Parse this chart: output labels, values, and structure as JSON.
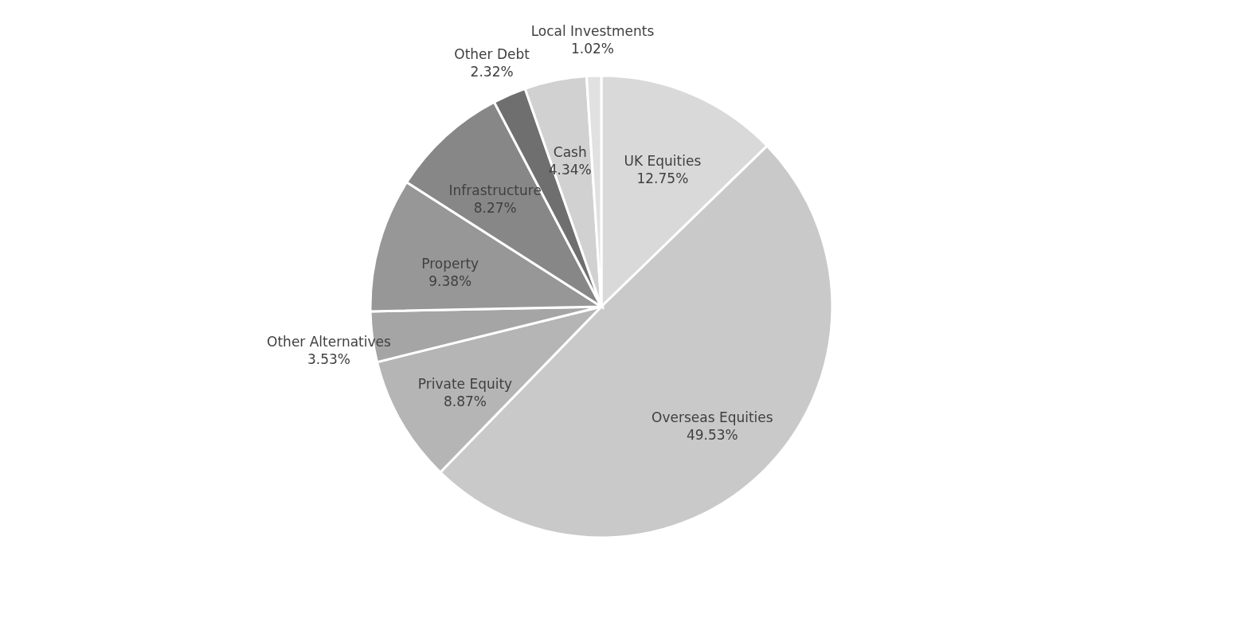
{
  "chart_data": {
    "type": "pie",
    "categories": [
      "UK Equities",
      "Overseas Equities",
      "Private Equity",
      "Other Alternatives",
      "Property",
      "Infrastructure",
      "Other Debt",
      "Cash",
      "Local Investments"
    ],
    "values": [
      12.75,
      49.53,
      8.87,
      3.53,
      9.38,
      8.27,
      2.32,
      4.34,
      1.02
    ],
    "value_labels": [
      "12.75%",
      "49.53%",
      "8.87%",
      "3.53%",
      "9.38%",
      "8.27%",
      "2.32%",
      "4.34%",
      "1.02%"
    ],
    "colors": [
      "#d9d9d9",
      "#c9c9c9",
      "#b5b5b5",
      "#a5a5a5",
      "#979797",
      "#878787",
      "#6f6f6f",
      "#d1d1d1",
      "#e1e1e1"
    ],
    "legend": false
  }
}
